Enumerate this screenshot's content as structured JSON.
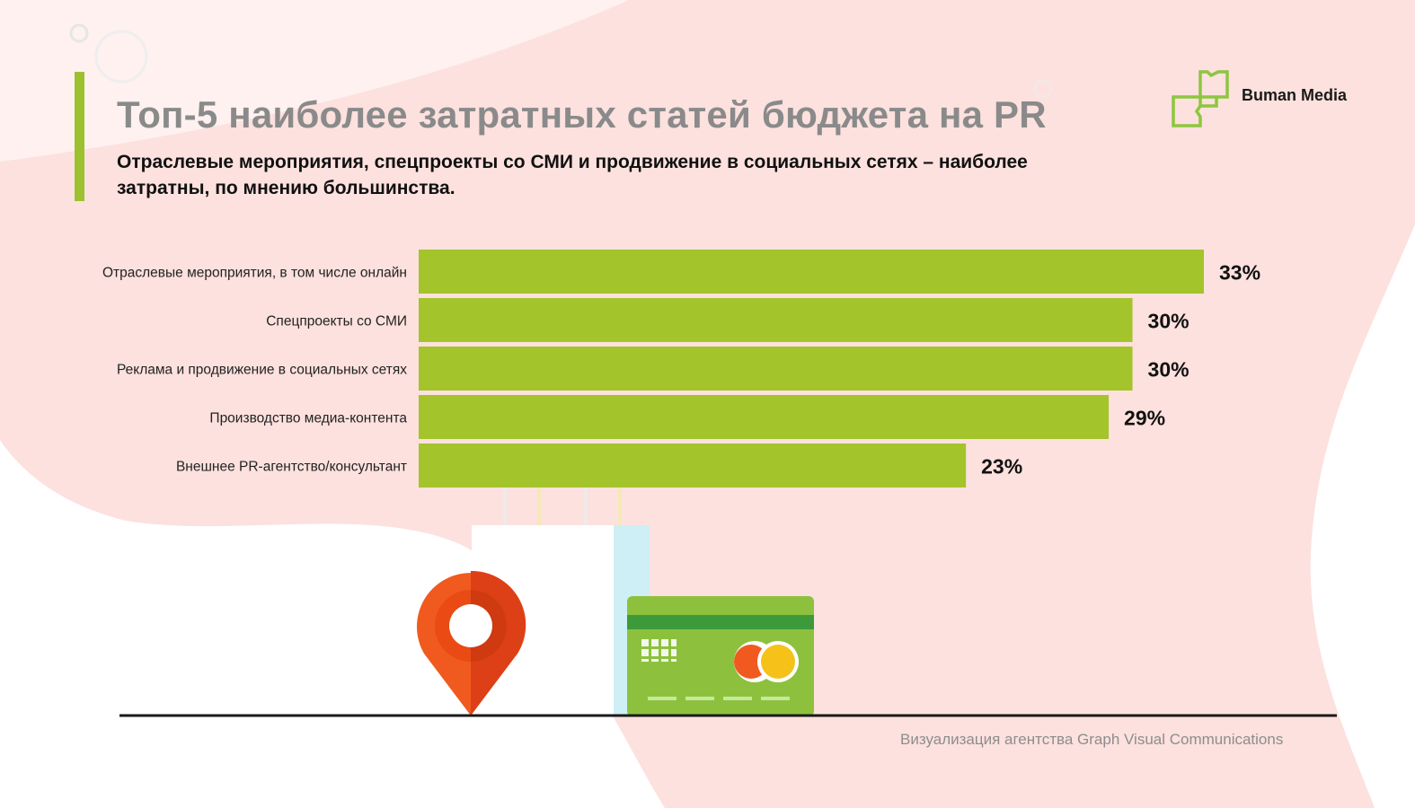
{
  "header": {
    "title": "Топ-5 наиболее затратных статей бюджета на PR",
    "subtitle": "Отраслевые мероприятия, спецпроекты со СМИ и продвижение в социальных сетях – наиболее затратны, по мнению большинства."
  },
  "logo": {
    "text": "Buman Media",
    "icon": "buman-media-logo-icon"
  },
  "footer": {
    "credit": "Визуализация агентства Graph Visual Communications"
  },
  "colors": {
    "bar": "#a3c42b",
    "accent": "#9cc12e",
    "title": "#8a8a8a",
    "background_blob": "#fbdcd8",
    "pin": "#f05a1e",
    "card": "#8dc13d"
  },
  "illustration": {
    "icons": [
      "shopping-bag-icon",
      "location-pin-icon",
      "credit-card-icon"
    ]
  },
  "chart_data": {
    "type": "bar",
    "orientation": "horizontal",
    "categories": [
      "Отраслевые мероприятия, в том числе онлайн",
      "Спецпроекты со СМИ",
      "Реклама и продвижение в социальных сетях",
      "Производство медиа-контента",
      "Внешнее PR-агентство/консультант"
    ],
    "values": [
      33,
      30,
      30,
      29,
      23
    ],
    "value_labels": [
      "33%",
      "30%",
      "30%",
      "29%",
      "23%"
    ],
    "unit": "%",
    "xlim": [
      0,
      33
    ],
    "grid": false,
    "legend": "none"
  }
}
